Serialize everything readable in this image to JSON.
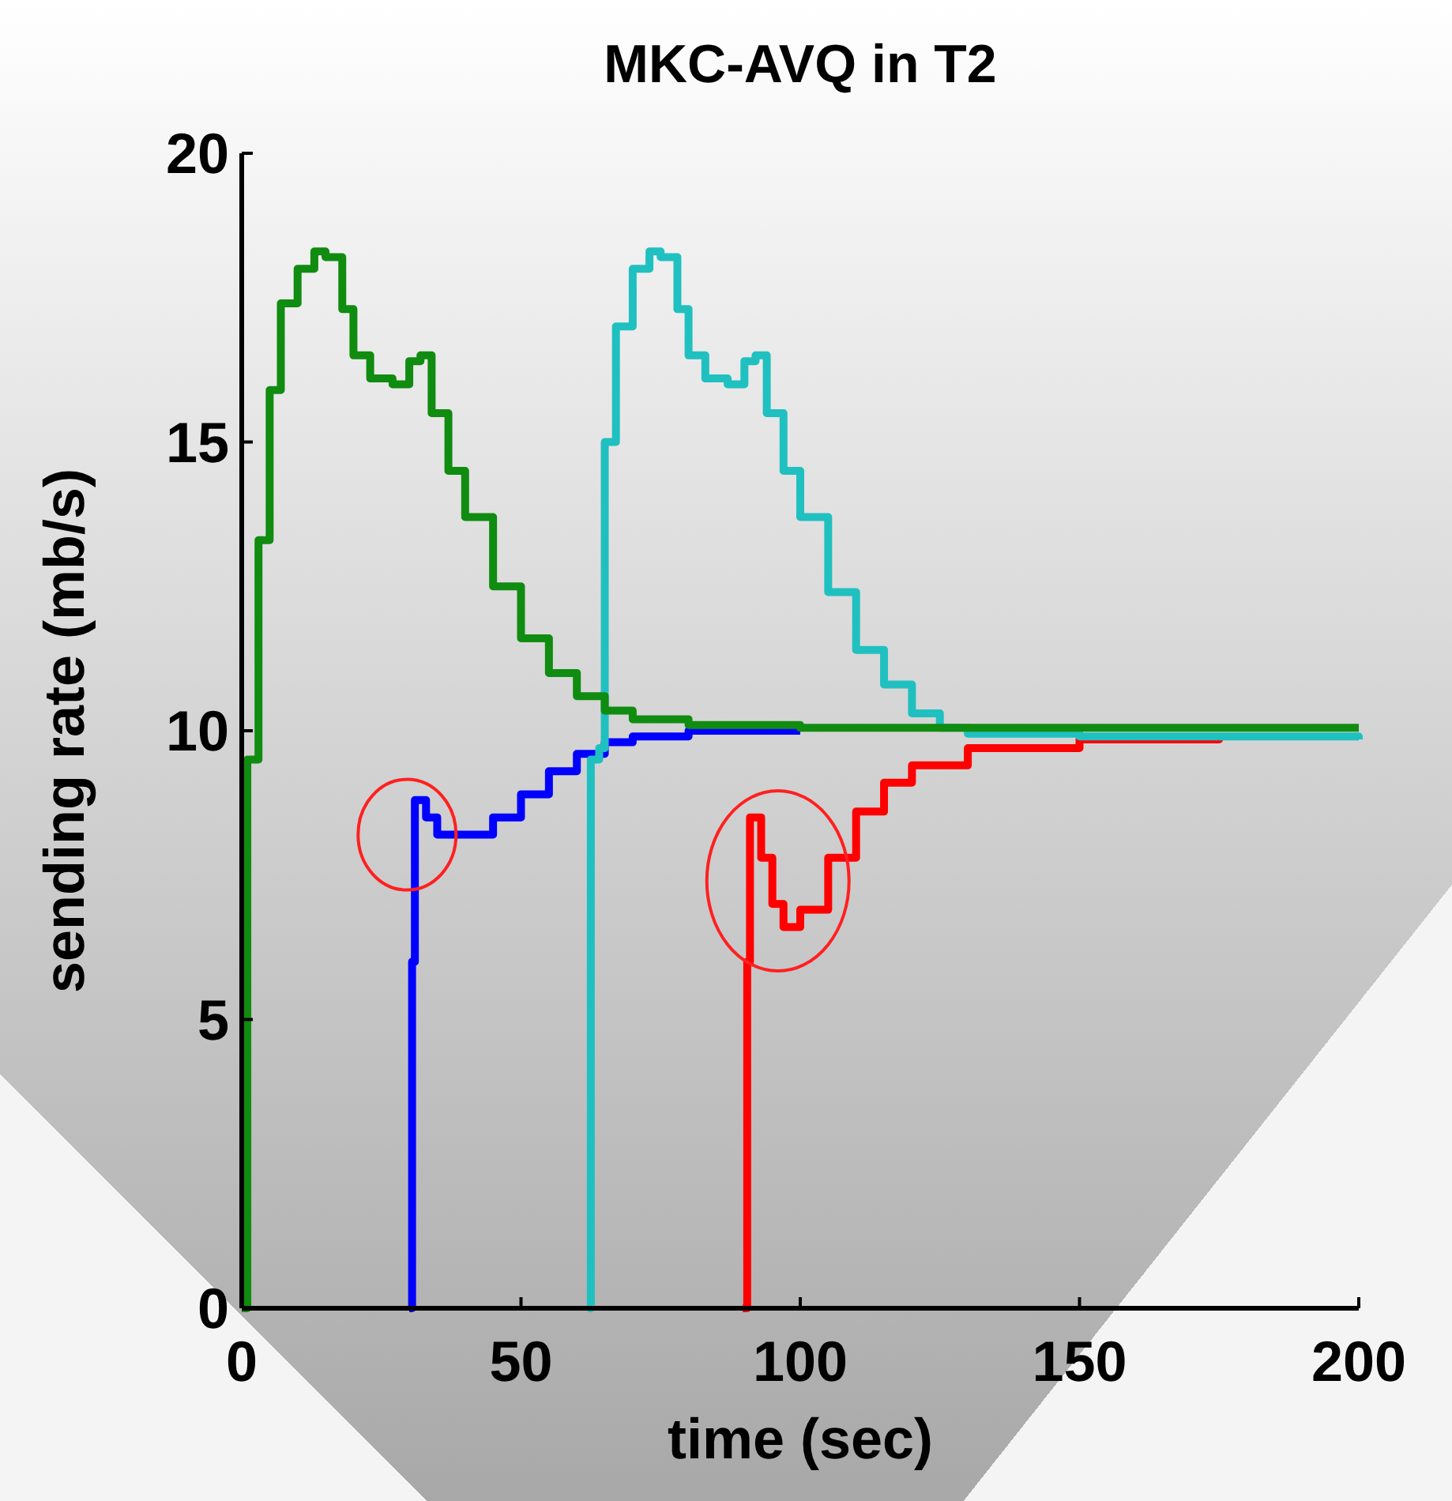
{
  "chart_data": {
    "type": "step",
    "title": "MKC-AVQ in T2",
    "xlabel": "time (sec)",
    "ylabel": "sending rate (mb/s)",
    "xlim": [
      0,
      200
    ],
    "ylim": [
      0,
      20
    ],
    "xticks": [
      0,
      50,
      100,
      150,
      200
    ],
    "yticks": [
      0,
      5,
      10,
      15,
      20
    ],
    "series": [
      {
        "color": "#ff0000",
        "x": [
          89.7,
          90.5,
          91,
          93,
          95,
          97,
          100,
          105,
          110,
          115,
          120,
          130,
          150,
          175
        ],
        "values": [
          0,
          6,
          8.5,
          7.8,
          7,
          6.6,
          6.9,
          7.8,
          8.6,
          9.1,
          9.4,
          9.7,
          9.85,
          9.9
        ]
      },
      {
        "color": "#0000ff",
        "x": [
          30,
          30.5,
          31,
          33,
          35,
          40,
          45,
          50,
          55,
          60,
          65,
          70,
          80,
          100
        ],
        "values": [
          0,
          6,
          8.8,
          8.5,
          8.2,
          8.2,
          8.5,
          8.9,
          9.3,
          9.6,
          9.8,
          9.9,
          10,
          10
        ]
      },
      {
        "color": "#20c0c0",
        "x": [
          62,
          62.5,
          64,
          65,
          67,
          70,
          73,
          75,
          78,
          80,
          83,
          87,
          90,
          92,
          94,
          97,
          100,
          105,
          110,
          115,
          120,
          125,
          130,
          150,
          200
        ],
        "values": [
          0,
          9.5,
          9.7,
          15,
          17,
          18,
          18.3,
          18.2,
          17.3,
          16.5,
          16.1,
          16,
          16.4,
          16.5,
          15.5,
          14.5,
          13.7,
          12.4,
          11.4,
          10.8,
          10.3,
          10.05,
          9.95,
          9.9,
          9.85
        ]
      },
      {
        "color": "#108c10",
        "x": [
          0,
          1,
          3,
          5,
          7,
          10,
          13,
          15,
          18,
          20,
          23,
          27,
          30,
          32,
          34,
          37,
          40,
          45,
          50,
          55,
          60,
          65,
          70,
          80,
          100,
          200
        ],
        "values": [
          0,
          9.5,
          13.3,
          15.9,
          17.4,
          18,
          18.3,
          18.2,
          17.3,
          16.5,
          16.1,
          16,
          16.4,
          16.5,
          15.5,
          14.5,
          13.7,
          12.5,
          11.6,
          11,
          10.6,
          10.35,
          10.2,
          10.1,
          10.05,
          10.05
        ]
      }
    ]
  }
}
